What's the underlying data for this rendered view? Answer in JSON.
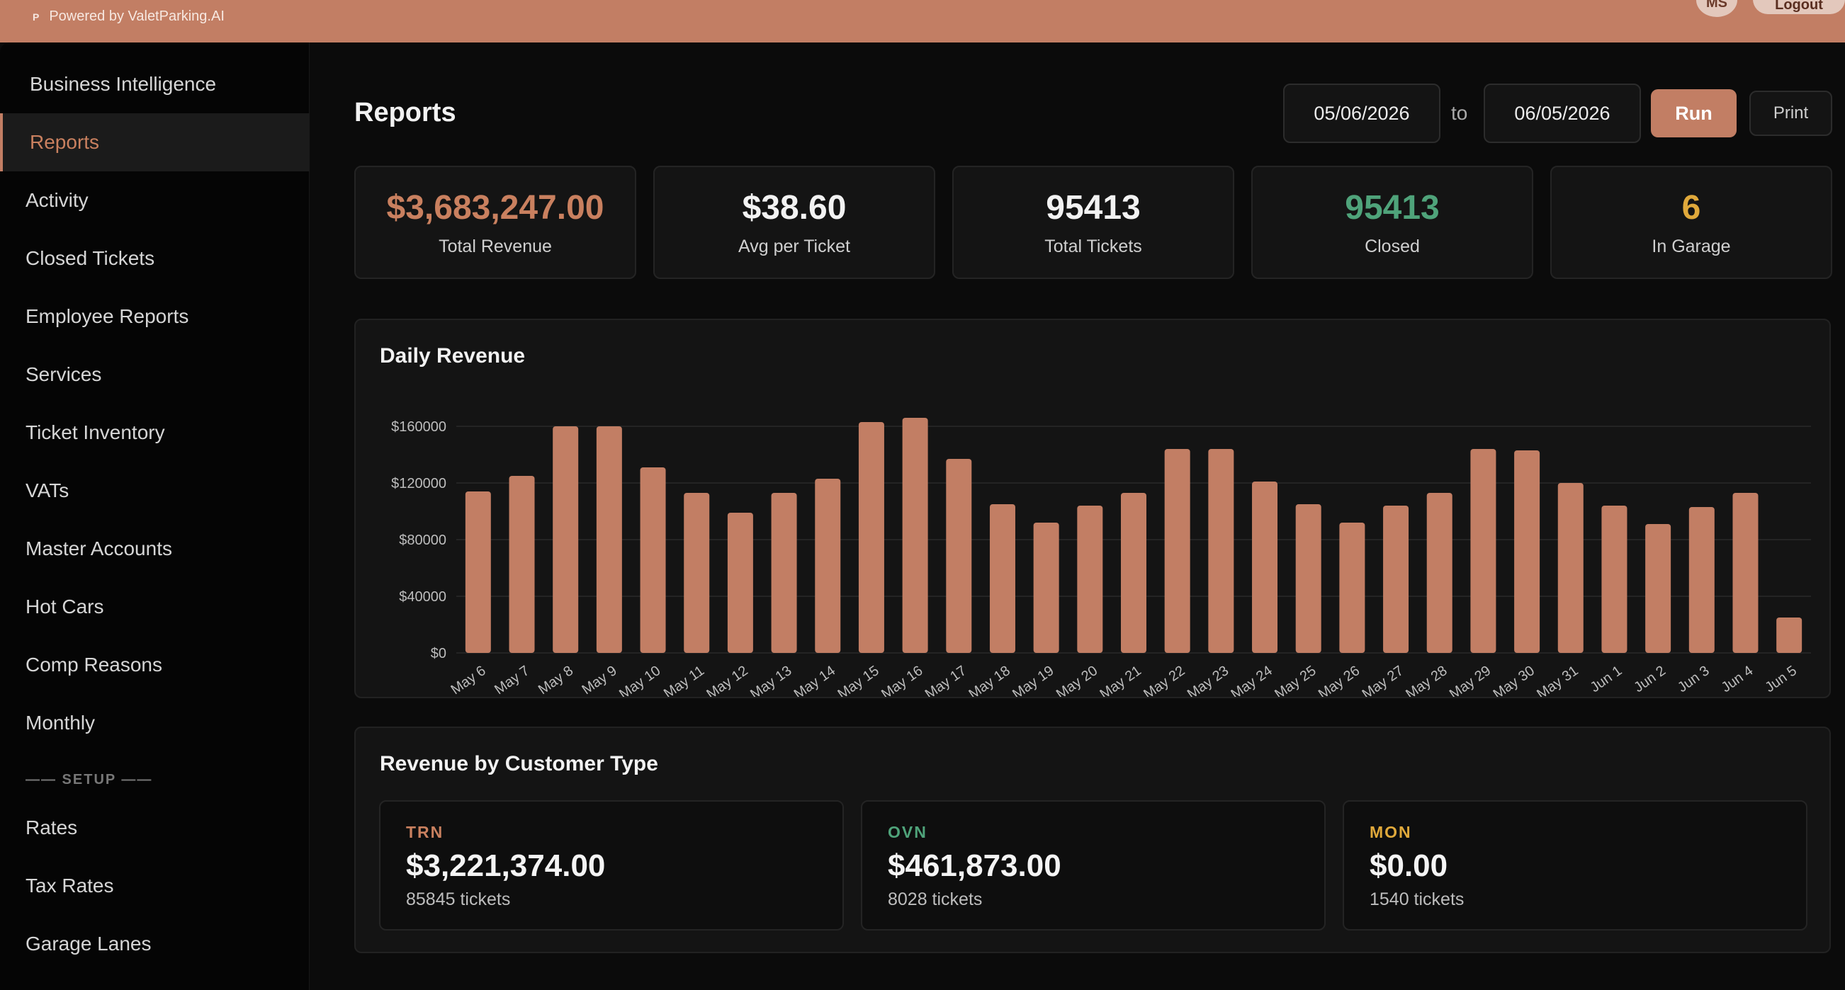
{
  "header": {
    "brand_mark": "P",
    "brand_text": "Powered by ValetParking.AI",
    "avatar_initials": "MS",
    "logout_label": "Logout"
  },
  "sidebar": {
    "items": [
      {
        "label": "Business Intelligence"
      },
      {
        "label": "Reports",
        "active": true
      },
      {
        "label": "Activity"
      },
      {
        "label": "Closed Tickets"
      },
      {
        "label": "Employee Reports"
      },
      {
        "label": "Services"
      },
      {
        "label": "Ticket Inventory"
      },
      {
        "label": "VATs"
      },
      {
        "label": "Master Accounts"
      },
      {
        "label": "Hot Cars"
      },
      {
        "label": "Comp Reasons"
      },
      {
        "label": "Monthly"
      }
    ],
    "setup_label": "—— SETUP ——",
    "setup_items": [
      {
        "label": "Rates"
      },
      {
        "label": "Tax Rates"
      },
      {
        "label": "Garage Lanes"
      }
    ]
  },
  "page": {
    "title": "Reports",
    "date_from": "05/06/2026",
    "to_label": "to",
    "date_to": "06/05/2026",
    "run_label": "Run",
    "print_label": "Print"
  },
  "stats": [
    {
      "value": "$3,683,247.00",
      "label": "Total Revenue",
      "color": "#c9805f"
    },
    {
      "value": "$38.60",
      "label": "Avg per Ticket",
      "color": "#f2f2f2"
    },
    {
      "value": "95413",
      "label": "Total Tickets",
      "color": "#f2f2f2"
    },
    {
      "value": "95413",
      "label": "Closed",
      "color": "#4fa37a"
    },
    {
      "value": "6",
      "label": "In Garage",
      "color": "#e0a93b"
    }
  ],
  "daily_revenue": {
    "title": "Daily Revenue"
  },
  "chart_data": {
    "type": "bar",
    "title": "Daily Revenue",
    "categories": [
      "May 6",
      "May 7",
      "May 8",
      "May 9",
      "May 10",
      "May 11",
      "May 12",
      "May 13",
      "May 14",
      "May 15",
      "May 16",
      "May 17",
      "May 18",
      "May 19",
      "May 20",
      "May 21",
      "May 22",
      "May 23",
      "May 24",
      "May 25",
      "May 26",
      "May 27",
      "May 28",
      "May 29",
      "May 30",
      "May 31",
      "Jun 1",
      "Jun 2",
      "Jun 3",
      "Jun 4",
      "Jun 5"
    ],
    "values": [
      114000,
      125000,
      160000,
      160000,
      131000,
      113000,
      99000,
      113000,
      123000,
      163000,
      166000,
      137000,
      105000,
      92000,
      104000,
      113000,
      144000,
      144000,
      121000,
      105000,
      92000,
      104000,
      113000,
      144000,
      143000,
      120000,
      104000,
      91000,
      103000,
      113000,
      25000
    ],
    "yticks": [
      "$0",
      "$40000",
      "$80000",
      "$120000",
      "$160000"
    ],
    "ylim": [
      0,
      170000
    ],
    "grid": true,
    "bar_color": "#c27e64"
  },
  "customer_types": {
    "title": "Revenue by Customer Type",
    "items": [
      {
        "code": "TRN",
        "amount": "$3,221,374.00",
        "tickets": "85845 tickets",
        "color": "#c9805f"
      },
      {
        "code": "OVN",
        "amount": "$461,873.00",
        "tickets": "8028 tickets",
        "color": "#4fa37a"
      },
      {
        "code": "MON",
        "amount": "$0.00",
        "tickets": "1540 tickets",
        "color": "#e0a93b"
      }
    ]
  }
}
